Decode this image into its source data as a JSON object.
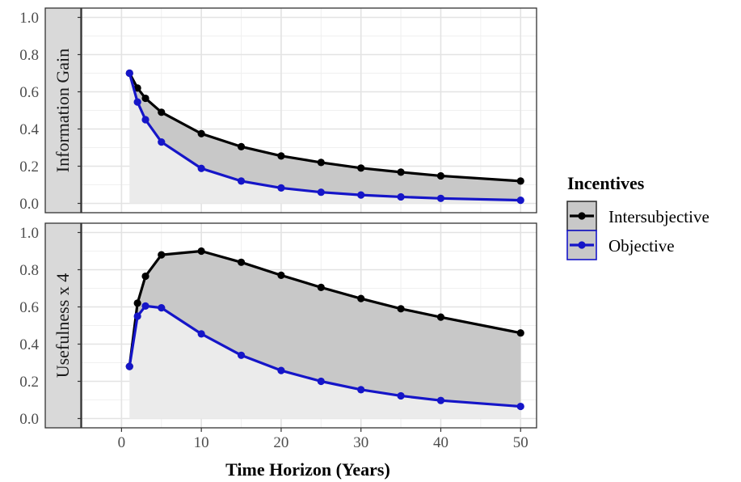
{
  "chart_data": {
    "type": "line",
    "xlabel": "Time Horizon (Years)",
    "x_ticks": [
      0,
      10,
      20,
      30,
      40,
      50
    ],
    "y_ticks": [
      "0.0",
      "0.2",
      "0.4",
      "0.6",
      "0.8",
      "1.0"
    ],
    "xlim": [
      -5,
      52
    ],
    "ylim": [
      -0.05,
      1.05
    ],
    "legend": {
      "title": "Incentives",
      "position": "right",
      "entries": [
        "Intersubjective",
        "Objective"
      ]
    },
    "colors": {
      "Intersubjective": "#000000",
      "Objective": "#1515c8",
      "between_fill": "#c8c8c8",
      "below_fill": "#ebebeb",
      "strip_bg": "#d9d9d9"
    },
    "x": [
      1,
      2,
      3,
      5,
      10,
      15,
      20,
      25,
      30,
      35,
      40,
      50
    ],
    "panels": [
      {
        "strip_label": "Information Gain",
        "series": [
          {
            "name": "Intersubjective",
            "values": [
              0.7,
              0.62,
              0.565,
              0.49,
              0.375,
              0.305,
              0.255,
              0.22,
              0.19,
              0.168,
              0.148,
              0.12
            ]
          },
          {
            "name": "Objective",
            "values": [
              0.7,
              0.545,
              0.45,
              0.33,
              0.188,
              0.12,
              0.083,
              0.06,
              0.045,
              0.035,
              0.027,
              0.017
            ]
          }
        ]
      },
      {
        "strip_label": "Usefulness x 4",
        "series": [
          {
            "name": "Intersubjective",
            "values": [
              0.28,
              0.62,
              0.765,
              0.88,
              0.9,
              0.84,
              0.77,
              0.705,
              0.645,
              0.59,
              0.545,
              0.46
            ]
          },
          {
            "name": "Objective",
            "values": [
              0.28,
              0.55,
              0.605,
              0.595,
              0.455,
              0.34,
              0.258,
              0.2,
              0.155,
              0.122,
              0.097,
              0.065
            ]
          }
        ]
      }
    ]
  }
}
